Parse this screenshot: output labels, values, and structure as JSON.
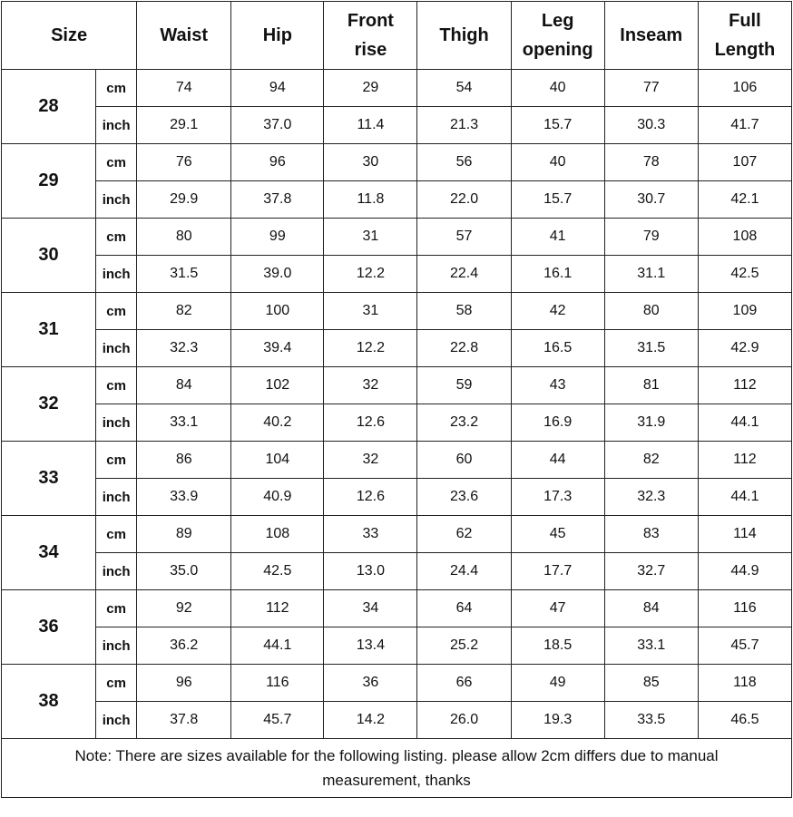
{
  "headers": {
    "size": "Size",
    "columns": [
      "Waist",
      "Hip",
      "Front rise",
      "Thigh",
      "Leg opening",
      "Inseam",
      "Full Length"
    ]
  },
  "units": {
    "cm": "cm",
    "inch": "inch"
  },
  "rows": [
    {
      "size": "28",
      "cm": [
        "74",
        "94",
        "29",
        "54",
        "40",
        "77",
        "106"
      ],
      "inch": [
        "29.1",
        "37.0",
        "11.4",
        "21.3",
        "15.7",
        "30.3",
        "41.7"
      ]
    },
    {
      "size": "29",
      "cm": [
        "76",
        "96",
        "30",
        "56",
        "40",
        "78",
        "107"
      ],
      "inch": [
        "29.9",
        "37.8",
        "11.8",
        "22.0",
        "15.7",
        "30.7",
        "42.1"
      ]
    },
    {
      "size": "30",
      "cm": [
        "80",
        "99",
        "31",
        "57",
        "41",
        "79",
        "108"
      ],
      "inch": [
        "31.5",
        "39.0",
        "12.2",
        "22.4",
        "16.1",
        "31.1",
        "42.5"
      ]
    },
    {
      "size": "31",
      "cm": [
        "82",
        "100",
        "31",
        "58",
        "42",
        "80",
        "109"
      ],
      "inch": [
        "32.3",
        "39.4",
        "12.2",
        "22.8",
        "16.5",
        "31.5",
        "42.9"
      ]
    },
    {
      "size": "32",
      "cm": [
        "84",
        "102",
        "32",
        "59",
        "43",
        "81",
        "112"
      ],
      "inch": [
        "33.1",
        "40.2",
        "12.6",
        "23.2",
        "16.9",
        "31.9",
        "44.1"
      ]
    },
    {
      "size": "33",
      "cm": [
        "86",
        "104",
        "32",
        "60",
        "44",
        "82",
        "112"
      ],
      "inch": [
        "33.9",
        "40.9",
        "12.6",
        "23.6",
        "17.3",
        "32.3",
        "44.1"
      ]
    },
    {
      "size": "34",
      "cm": [
        "89",
        "108",
        "33",
        "62",
        "45",
        "83",
        "114"
      ],
      "inch": [
        "35.0",
        "42.5",
        "13.0",
        "24.4",
        "17.7",
        "32.7",
        "44.9"
      ]
    },
    {
      "size": "36",
      "cm": [
        "92",
        "112",
        "34",
        "64",
        "47",
        "84",
        "116"
      ],
      "inch": [
        "36.2",
        "44.1",
        "13.4",
        "25.2",
        "18.5",
        "33.1",
        "45.7"
      ]
    },
    {
      "size": "38",
      "cm": [
        "96",
        "116",
        "36",
        "66",
        "49",
        "85",
        "118"
      ],
      "inch": [
        "37.8",
        "45.7",
        "14.2",
        "26.0",
        "19.3",
        "33.5",
        "46.5"
      ]
    }
  ],
  "note": "Note: There are sizes available for the following listing. please allow 2cm differs due to manual measurement, thanks"
}
